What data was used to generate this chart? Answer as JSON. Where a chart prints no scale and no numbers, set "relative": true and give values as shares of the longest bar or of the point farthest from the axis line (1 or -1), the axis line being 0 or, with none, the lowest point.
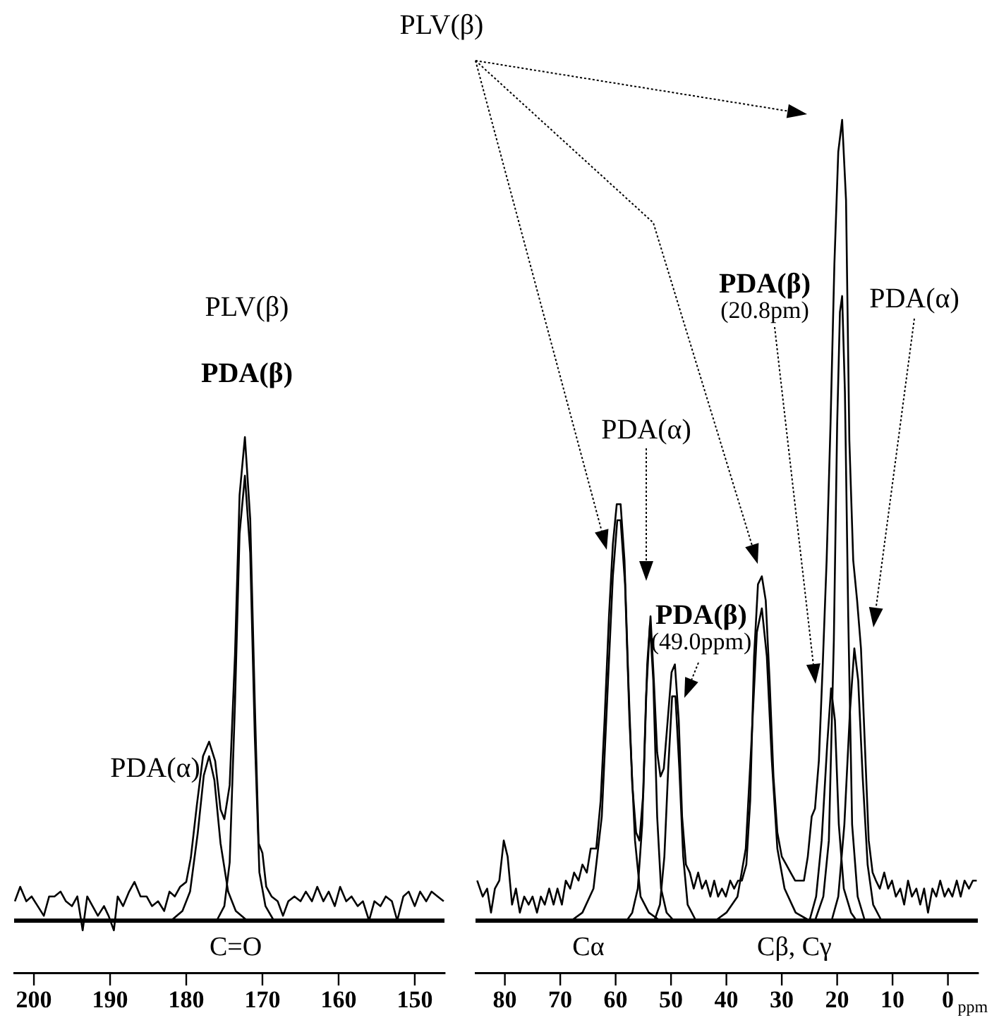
{
  "chart_data": [
    {
      "type": "line",
      "relative": true,
      "marker": "none",
      "line_style": "solid",
      "legend": false,
      "tick_labels": "x",
      "xlim": [
        202.6,
        146.1
      ],
      "xticks": [
        200,
        190,
        180,
        170,
        160,
        150
      ],
      "ref_lines": [
        {
          "axis": "y",
          "value": 0,
          "color": "#000000"
        }
      ],
      "annotations": [
        "PLV(β)",
        "PDA(β)",
        "PDA(α)",
        "C=O"
      ],
      "series": [
        {
          "color": "#000000",
          "x": [
            202.5,
            201.8,
            201,
            200.3,
            199.5,
            198.7,
            198,
            197.3,
            196.5,
            195.8,
            195,
            194.3,
            193.6,
            193,
            192.3,
            191.6,
            190.8,
            190.2,
            189.5,
            189,
            188.3,
            187.5,
            186.8,
            186,
            185.2,
            184.5,
            183.7,
            182.9,
            182.2,
            181.5,
            180.8,
            180,
            179.4,
            178.6,
            177.8,
            177,
            176.2,
            175.5,
            175,
            174.3,
            173.6,
            173,
            172.3,
            171.6,
            171,
            170.5,
            170,
            169.5,
            168.8,
            168,
            167.3,
            166.6,
            165.8,
            165,
            164.3,
            163.5,
            162.8,
            162,
            161.3,
            160.5,
            159.8,
            159,
            158.3,
            157.5,
            156.8,
            156,
            155.3,
            154.5,
            153.8,
            153,
            152.3,
            151.5,
            150.8,
            150,
            149.3,
            148.5,
            147.8,
            147,
            146.2
          ],
          "values": [
            0.04,
            0.07,
            0.04,
            0.05,
            0.03,
            0.01,
            0.05,
            0.05,
            0.06,
            0.04,
            0.03,
            0.05,
            -0.02,
            0.05,
            0.03,
            0.01,
            0.03,
            0.01,
            -0.02,
            0.05,
            0.03,
            0.06,
            0.08,
            0.05,
            0.05,
            0.03,
            0.04,
            0.02,
            0.06,
            0.05,
            0.07,
            0.08,
            0.13,
            0.24,
            0.34,
            0.37,
            0.33,
            0.23,
            0.21,
            0.28,
            0.55,
            0.88,
            1.0,
            0.83,
            0.45,
            0.16,
            0.14,
            0.07,
            0.05,
            0.04,
            0.01,
            0.04,
            0.05,
            0.04,
            0.06,
            0.04,
            0.07,
            0.04,
            0.06,
            0.03,
            0.07,
            0.04,
            0.05,
            0.03,
            0.04,
            0.0,
            0.04,
            0.03,
            0.05,
            0.04,
            0.0,
            0.05,
            0.06,
            0.03,
            0.06,
            0.04,
            0.06,
            0.05,
            0.04
          ]
        },
        {
          "color": "#000000",
          "x": [
            182,
            180.5,
            179.5,
            178.5,
            177.7,
            177,
            176.3,
            175.5,
            174.5,
            173.5,
            172
          ],
          "values": [
            0,
            0.02,
            0.06,
            0.18,
            0.3,
            0.34,
            0.29,
            0.16,
            0.06,
            0.02,
            0
          ]
        },
        {
          "color": "#000000",
          "x": [
            176,
            175,
            174.3,
            173.6,
            173,
            172.3,
            171.6,
            171,
            170.4,
            169.6,
            168.5
          ],
          "values": [
            0,
            0.03,
            0.12,
            0.45,
            0.8,
            0.92,
            0.76,
            0.38,
            0.1,
            0.03,
            0
          ]
        }
      ]
    },
    {
      "type": "line",
      "relative": true,
      "marker": "none",
      "line_style": "solid",
      "legend": false,
      "tick_labels": "x",
      "xlabel": "ppm",
      "xlim": [
        85.3,
        -5.4
      ],
      "xticks": [
        80,
        70,
        60,
        50,
        40,
        30,
        20,
        10,
        0
      ],
      "ref_lines": [
        {
          "axis": "y",
          "value": 0,
          "color": "#000000"
        }
      ],
      "annotations": [
        "PLV(β)",
        "PDA(α)",
        "PDA(β)\n(49.0ppm)",
        "PDA(β)\n(20.8pm)",
        "PDA(α)",
        "Cα",
        "Cβ, Cγ"
      ],
      "series": [
        {
          "color": "#000000",
          "x": [
            85,
            84,
            83.2,
            82.5,
            81.8,
            81,
            80.2,
            79.5,
            78.7,
            78,
            77.3,
            76.5,
            75.7,
            75,
            74.2,
            73.5,
            72.8,
            72,
            71.2,
            70.5,
            69.7,
            69,
            68.2,
            67.5,
            66.7,
            66,
            65.2,
            64.5,
            63.5,
            62.7,
            62,
            61.2,
            60.5,
            59.8,
            59.1,
            58.4,
            57.7,
            57,
            56.3,
            55.7,
            55,
            54.3,
            53.7,
            53.1,
            52.5,
            51.9,
            51.3,
            50.6,
            49.9,
            49.3,
            48.6,
            48,
            47.3,
            46.6,
            45.9,
            45.1,
            44.4,
            43.7,
            42.9,
            42.2,
            41.5,
            40.8,
            40.1,
            39.3,
            38.6,
            37.9,
            37.2,
            36.4,
            35.7,
            35,
            34.3,
            33.6,
            32.9,
            32.2,
            31.5,
            30.8,
            30,
            29.2,
            28.4,
            27.6,
            26.8,
            26,
            25.3,
            24.6,
            24,
            23.3,
            22.6,
            21.9,
            21.2,
            20.5,
            19.8,
            19.1,
            18.4,
            17.8,
            17.1,
            16.4,
            15.7,
            15,
            14.3,
            13.6,
            13,
            12.3,
            11.5,
            10.8,
            10.1,
            9.4,
            8.6,
            7.9,
            7.2,
            6.5,
            5.7,
            5,
            4.3,
            3.6,
            2.8,
            2.1,
            1.4,
            0.6,
            -0.1,
            -0.8,
            -1.6,
            -2.3,
            -3,
            -3.8,
            -4.5,
            -5.2
          ],
          "values": [
            0.05,
            0.03,
            0.04,
            0.01,
            0.04,
            0.05,
            0.1,
            0.08,
            0.02,
            0.04,
            0.01,
            0.03,
            0.02,
            0.03,
            0.01,
            0.03,
            0.02,
            0.04,
            0.02,
            0.04,
            0.02,
            0.05,
            0.04,
            0.06,
            0.05,
            0.07,
            0.06,
            0.09,
            0.09,
            0.15,
            0.25,
            0.38,
            0.47,
            0.52,
            0.52,
            0.45,
            0.3,
            0.17,
            0.11,
            0.1,
            0.16,
            0.32,
            0.38,
            0.3,
            0.21,
            0.18,
            0.19,
            0.25,
            0.31,
            0.32,
            0.25,
            0.13,
            0.07,
            0.06,
            0.04,
            0.06,
            0.04,
            0.05,
            0.03,
            0.05,
            0.03,
            0.04,
            0.03,
            0.05,
            0.04,
            0.05,
            0.05,
            0.07,
            0.15,
            0.33,
            0.42,
            0.43,
            0.4,
            0.3,
            0.18,
            0.11,
            0.08,
            0.07,
            0.06,
            0.05,
            0.05,
            0.05,
            0.08,
            0.13,
            0.14,
            0.2,
            0.32,
            0.45,
            0.62,
            0.82,
            0.96,
            1.0,
            0.9,
            0.6,
            0.45,
            0.4,
            0.34,
            0.22,
            0.1,
            0.06,
            0.05,
            0.04,
            0.06,
            0.04,
            0.05,
            0.03,
            0.04,
            0.02,
            0.05,
            0.03,
            0.04,
            0.02,
            0.04,
            0.01,
            0.04,
            0.03,
            0.05,
            0.03,
            0.04,
            0.03,
            0.05,
            0.03,
            0.05,
            0.04,
            0.05,
            0.05
          ]
        },
        {
          "color": "#000000",
          "x": [
            68,
            66,
            64,
            62.5,
            61.5,
            60.5,
            59.7,
            59.1,
            58.3,
            57.5,
            56.5,
            55.5,
            54,
            52
          ],
          "values": [
            0,
            0.01,
            0.04,
            0.13,
            0.28,
            0.43,
            0.5,
            0.5,
            0.42,
            0.25,
            0.1,
            0.03,
            0.01,
            0
          ]
        },
        {
          "color": "#000000",
          "x": [
            58,
            57,
            56,
            55.2,
            54.5,
            53.8,
            53.2,
            52.5,
            51.8,
            50.8,
            49.5
          ],
          "values": [
            0,
            0.01,
            0.04,
            0.12,
            0.28,
            0.37,
            0.3,
            0.13,
            0.04,
            0.01,
            0
          ]
        },
        {
          "color": "#000000",
          "x": [
            53,
            52,
            51.2,
            50.5,
            49.8,
            49.2,
            48.5,
            47.8,
            47,
            45.5
          ],
          "values": [
            0,
            0.02,
            0.08,
            0.19,
            0.28,
            0.28,
            0.19,
            0.08,
            0.02,
            0
          ]
        },
        {
          "color": "#000000",
          "x": [
            42,
            40,
            38,
            36.5,
            35.5,
            34.5,
            33.6,
            32.7,
            31.8,
            30.8,
            29.5,
            27.5,
            25
          ],
          "values": [
            0,
            0.01,
            0.03,
            0.09,
            0.22,
            0.36,
            0.39,
            0.33,
            0.2,
            0.09,
            0.04,
            0.01,
            0
          ]
        },
        {
          "color": "#000000",
          "x": [
            25,
            23.8,
            22.8,
            21.8,
            21.1,
            20.4,
            19.7,
            18.8,
            17.5,
            16.5
          ],
          "values": [
            0,
            0.03,
            0.1,
            0.22,
            0.29,
            0.25,
            0.12,
            0.04,
            0.01,
            0
          ]
        },
        {
          "color": "#000000",
          "x": [
            24,
            22.5,
            21.5,
            20.6,
            20,
            19.5,
            19.1,
            18.6,
            18,
            17.3,
            16.3,
            15
          ],
          "values": [
            0,
            0.03,
            0.1,
            0.35,
            0.62,
            0.76,
            0.78,
            0.66,
            0.38,
            0.12,
            0.03,
            0
          ]
        },
        {
          "color": "#000000",
          "x": [
            21,
            19.8,
            18.7,
            17.7,
            16.9,
            16.2,
            15.4,
            14.5,
            13.5,
            12
          ],
          "values": [
            0,
            0.03,
            0.12,
            0.26,
            0.34,
            0.3,
            0.18,
            0.07,
            0.02,
            0
          ]
        }
      ]
    }
  ]
}
